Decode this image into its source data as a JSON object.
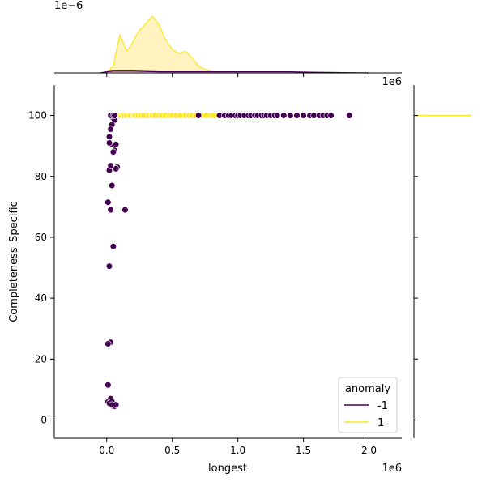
{
  "chart_data": {
    "type": "scatter",
    "xlabel": "longest",
    "ylabel": "Completeness_Specific",
    "x_offset_text": "1e6",
    "top_offset_text": "1e6",
    "top_y_offset_text": "1e−6",
    "xlim": [
      -0.4,
      2.25
    ],
    "ylim": [
      -6,
      110
    ],
    "xticks": [
      "0.0",
      "0.5",
      "1.0",
      "1.5",
      "2.0"
    ],
    "yticks": [
      "0",
      "20",
      "40",
      "60",
      "80",
      "100"
    ],
    "legend": {
      "title": "anomaly",
      "position": "lower right",
      "entries": [
        {
          "label": "-1",
          "color": "#440154"
        },
        {
          "label": "1",
          "color": "#fde725"
        }
      ]
    },
    "series": [
      {
        "name": "1",
        "color": "#fde725",
        "x": [
          0.04,
          0.06,
          0.07,
          0.09,
          0.1,
          0.11,
          0.12,
          0.14,
          0.15,
          0.17,
          0.18,
          0.2,
          0.21,
          0.22,
          0.24,
          0.26,
          0.28,
          0.3,
          0.32,
          0.34,
          0.35,
          0.37,
          0.4,
          0.42,
          0.45,
          0.48,
          0.5,
          0.53,
          0.56,
          0.6,
          0.63,
          0.65,
          0.68,
          0.72,
          0.76,
          0.8,
          0.82,
          0.86,
          0.9
        ],
        "y": [
          100,
          100,
          100,
          100,
          100,
          100,
          100,
          100,
          100,
          100,
          100,
          100,
          100,
          100,
          100,
          100,
          100,
          100,
          100,
          100,
          100,
          100,
          100,
          100,
          100,
          100,
          100,
          100,
          100,
          100,
          100,
          100,
          100,
          100,
          100,
          100,
          100,
          100,
          100
        ]
      },
      {
        "name": "-1",
        "color": "#440154",
        "x": [
          0.03,
          0.05,
          0.06,
          0.04,
          0.03,
          0.02,
          0.04,
          0.07,
          0.06,
          0.02,
          0.05,
          0.08,
          0.07,
          0.02,
          0.03,
          0.04,
          0.01,
          0.03,
          0.05,
          0.14,
          0.02,
          0.03,
          0.01,
          0.01,
          0.01,
          0.02,
          0.03,
          0.04,
          0.05,
          0.06,
          0.04,
          0.07,
          0.03,
          0.05,
          0.06,
          0.7,
          0.86,
          0.9,
          0.93,
          0.95,
          0.98,
          1.0,
          1.02,
          1.05,
          1.08,
          1.1,
          1.13,
          1.15,
          1.18,
          1.2,
          1.22,
          1.25,
          1.28,
          1.3,
          1.35,
          1.4,
          1.45,
          1.5,
          1.55,
          1.58,
          1.62,
          1.65,
          1.68,
          1.71,
          1.85
        ],
        "y": [
          100,
          99,
          98.5,
          97,
          95.5,
          93,
          90.5,
          90.5,
          88.5,
          91,
          88,
          83,
          82.5,
          82,
          83.5,
          77,
          71.5,
          69,
          57,
          69,
          50.5,
          25.5,
          25,
          11.5,
          6,
          5.5,
          7,
          6,
          4.5,
          4.5,
          5,
          5,
          100,
          100,
          100,
          100,
          100,
          100,
          100,
          100,
          100,
          100,
          100,
          100,
          100,
          100,
          100,
          100,
          100,
          100,
          100,
          100,
          100,
          100,
          100,
          100,
          100,
          100,
          100,
          100,
          100,
          100,
          100,
          100,
          100
        ]
      }
    ],
    "marginal_top": {
      "type": "kde",
      "series": [
        {
          "name": "1",
          "color": "#fde725",
          "fill": "#fff3b8",
          "x": [
            0.0,
            0.05,
            0.08,
            0.1,
            0.12,
            0.15,
            0.18,
            0.22,
            0.25,
            0.3,
            0.35,
            0.4,
            0.45,
            0.5,
            0.55,
            0.6,
            0.65,
            0.7,
            0.75,
            0.8,
            0.85,
            0.9
          ],
          "density": [
            0.0,
            0.12,
            0.45,
            0.65,
            0.55,
            0.38,
            0.45,
            0.62,
            0.73,
            0.85,
            0.97,
            0.82,
            0.56,
            0.4,
            0.33,
            0.37,
            0.26,
            0.12,
            0.06,
            0.02,
            0.01,
            0.0
          ]
        },
        {
          "name": "-1",
          "color": "#440154",
          "x": [
            -0.05,
            0.0,
            0.05,
            0.2,
            0.4,
            0.6,
            0.8,
            1.0,
            1.2,
            1.4,
            1.6,
            1.8,
            2.0
          ],
          "density": [
            0.0,
            0.02,
            0.03,
            0.03,
            0.02,
            0.02,
            0.02,
            0.02,
            0.02,
            0.02,
            0.01,
            0.005,
            0.0
          ]
        }
      ]
    },
    "marginal_right": {
      "type": "kde",
      "series": [
        {
          "name": "1",
          "color": "#fde725",
          "peak_y": 100
        }
      ]
    }
  }
}
